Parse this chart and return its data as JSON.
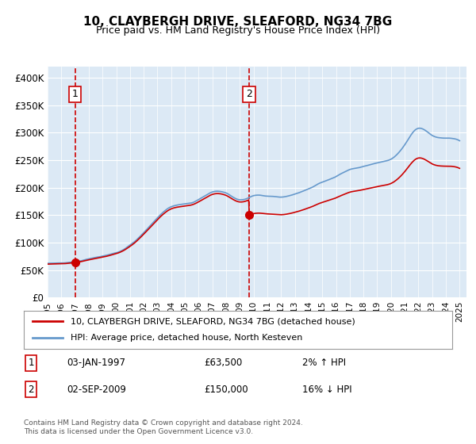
{
  "title": "10, CLAYBERGH DRIVE, SLEAFORD, NG34 7BG",
  "subtitle": "Price paid vs. HM Land Registry's House Price Index (HPI)",
  "background_color": "#dce9f5",
  "plot_bg_color": "#dce9f5",
  "y_ticks": [
    0,
    50000,
    100000,
    150000,
    200000,
    250000,
    300000,
    350000,
    400000
  ],
  "y_tick_labels": [
    "£0",
    "£50K",
    "£100K",
    "£150K",
    "£200K",
    "£250K",
    "£300K",
    "£350K",
    "£400K"
  ],
  "ylim": [
    0,
    420000
  ],
  "x_start_year": 1995,
  "x_end_year": 2025,
  "vline1_year": 1997.0,
  "vline2_year": 2009.67,
  "marker1_year": 1997.0,
  "marker1_value": 63500,
  "marker2_year": 2009.67,
  "marker2_value": 150000,
  "legend_line1": "10, CLAYBERGH DRIVE, SLEAFORD, NG34 7BG (detached house)",
  "legend_line2": "HPI: Average price, detached house, North Kesteven",
  "table_row1_num": "1",
  "table_row1_date": "03-JAN-1997",
  "table_row1_price": "£63,500",
  "table_row1_hpi": "2% ↑ HPI",
  "table_row2_num": "2",
  "table_row2_date": "02-SEP-2009",
  "table_row2_price": "£150,000",
  "table_row2_hpi": "16% ↓ HPI",
  "footer": "Contains HM Land Registry data © Crown copyright and database right 2024.\nThis data is licensed under the Open Government Licence v3.0.",
  "red_line_color": "#cc0000",
  "blue_line_color": "#6699cc",
  "marker_color": "#cc0000",
  "vline_color": "#cc0000",
  "grid_color": "#ffffff"
}
